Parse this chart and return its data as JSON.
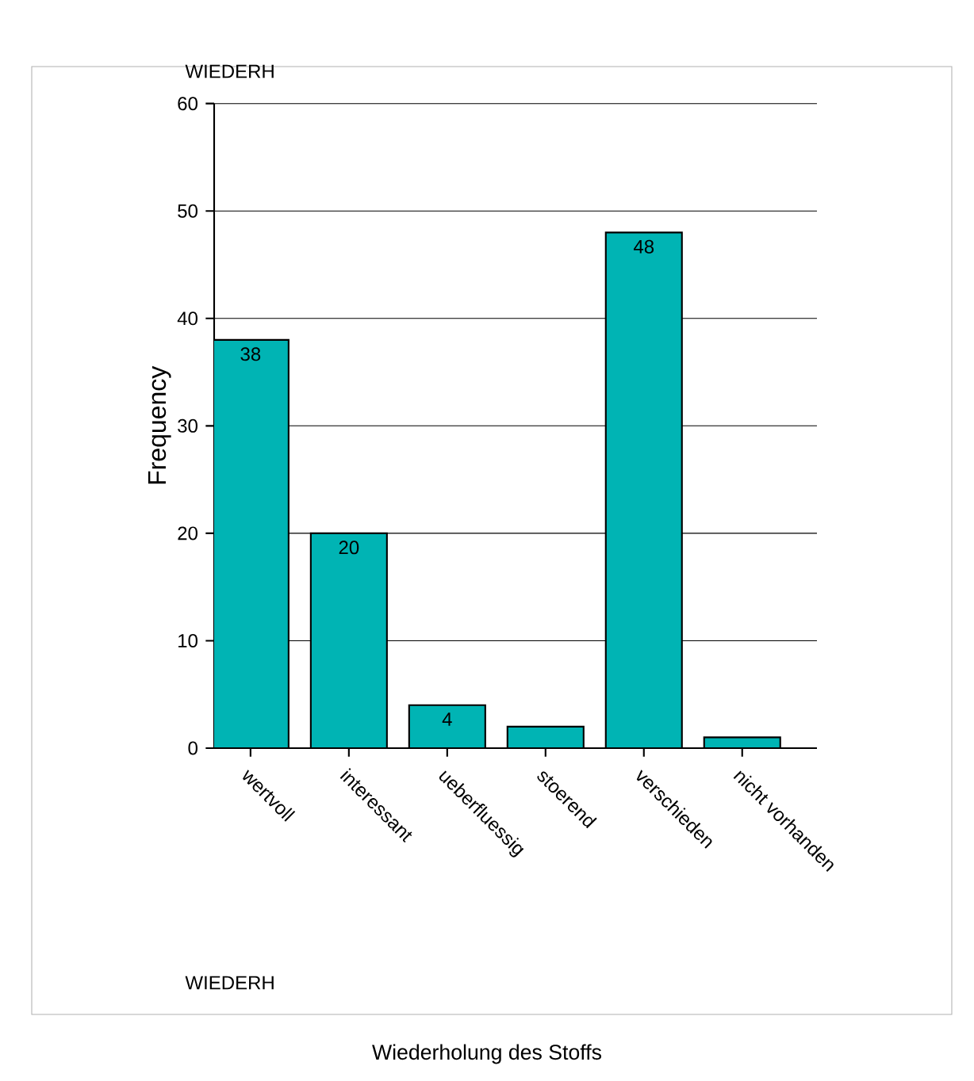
{
  "chart_data": {
    "type": "bar",
    "title": "WIEDERH",
    "ylabel": "Frequency",
    "annotations": [
      "WIEDERH",
      "Wiederholung des Stoffs"
    ],
    "categories": [
      "wertvoll",
      "interessant",
      "ueberfluessig",
      "stoerend",
      "verschieden",
      "nicht vorhanden"
    ],
    "values": [
      38,
      20,
      4,
      2,
      48,
      1
    ],
    "value_labels": [
      "38",
      "20",
      "4",
      null,
      "48",
      null
    ],
    "color": "#00b4b4",
    "ylim": [
      0,
      60
    ],
    "yticks": [
      0,
      10,
      20,
      30,
      40,
      50,
      60
    ],
    "grid": "y"
  }
}
